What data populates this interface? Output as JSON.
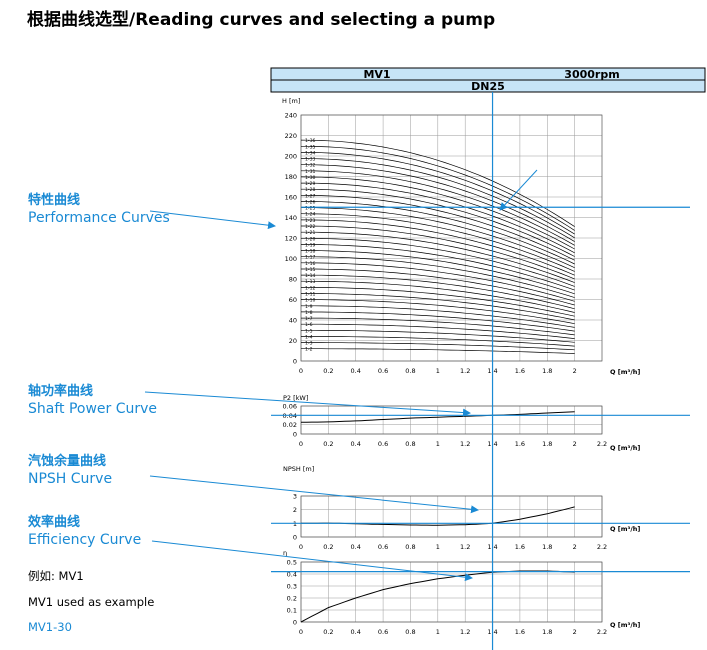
{
  "page": {
    "title": "根据曲线选型/Reading curves and selecting a pump"
  },
  "callouts": [
    {
      "cn": "特性曲线",
      "en": "Performance Curves"
    },
    {
      "cn": "轴功率曲线",
      "en": "Shaft Power Curve"
    },
    {
      "cn": "汽蚀余量曲线",
      "en": "NPSH  Curve"
    },
    {
      "cn": "效率曲线",
      "en": "Efficiency Curve"
    }
  ],
  "example": {
    "line1": "例如:  MV1",
    "line2": "MV1 used as example",
    "line3": "MV1-30"
  },
  "header": {
    "model": "MV1",
    "speed": "3000rpm",
    "size": "DN25"
  },
  "colors": {
    "accent": "#1a8ad4",
    "header_fill": "#c6e4f7",
    "grid": "#9a9a9a",
    "curve": "#000000"
  },
  "chart_data": [
    {
      "type": "line",
      "name": "performance",
      "ylabel": "H [m]",
      "xlabel": "Q [m³/h]",
      "xlim": [
        0,
        2.2
      ],
      "ylim": [
        0,
        240
      ],
      "xticks": [
        "0",
        "0.2",
        "0.4",
        "0.6",
        "0.8",
        "1",
        "1.2",
        "1.4",
        "1.6",
        "1.8",
        "2"
      ],
      "yticks": [
        "0",
        "20",
        "40",
        "60",
        "80",
        "100",
        "120",
        "140",
        "160",
        "180",
        "200",
        "220",
        "240"
      ],
      "grid": true,
      "stage_head_shutoff_m": 7.3,
      "curve_end_q": 2.02,
      "end_ratio": 0.6,
      "stage_labels": [
        "1-2",
        "1-3",
        "1-4",
        "1-5",
        "1-6",
        "1-7",
        "1-8",
        "1-9",
        "1-10",
        "1-11",
        "1-12",
        "1-13",
        "1-14",
        "1-15",
        "1-16",
        "1-17",
        "1-18",
        "1-19",
        "1-20",
        "1-21",
        "1-22",
        "1-23",
        "1-24",
        "1-25",
        "1-26",
        "1-27",
        "1-28",
        "1-29",
        "1-30",
        "1-31",
        "1-32",
        "1-33",
        "1-34",
        "1-35",
        "1-36"
      ],
      "selected": {
        "label": "MV1-30",
        "q": 1.4,
        "h": 150
      }
    },
    {
      "type": "line",
      "name": "shaft_power",
      "ylabel": "P2 [kW]",
      "xlabel": "Q [m³/h]",
      "xlim": [
        0,
        2.2
      ],
      "ylim": [
        0,
        0.06
      ],
      "xticks": [
        "0",
        "0.2",
        "0.4",
        "0.6",
        "0.8",
        "1",
        "1.2",
        "1.4",
        "1.6",
        "1.8",
        "2",
        "2.2"
      ],
      "yticks": [
        "0",
        "0.02",
        "0.04",
        "0.06"
      ],
      "grid": true,
      "x": [
        0,
        0.2,
        0.4,
        0.6,
        0.8,
        1.0,
        1.2,
        1.4,
        1.6,
        1.8,
        2.02
      ],
      "y": [
        0.025,
        0.026,
        0.028,
        0.031,
        0.034,
        0.036,
        0.038,
        0.04,
        0.042,
        0.045,
        0.048
      ],
      "reference": 0.04
    },
    {
      "type": "line",
      "name": "npsh",
      "ylabel": "NPSH [m]",
      "xlabel": "Q [m³/h]",
      "xlim": [
        0,
        2.2
      ],
      "ylim": [
        0,
        3
      ],
      "xticks": [
        "0",
        "0.2",
        "0.4",
        "0.6",
        "0.8",
        "1",
        "1.2",
        "1.4",
        "1.6",
        "1.8",
        "2",
        "2.2"
      ],
      "yticks": [
        "0",
        "1",
        "2",
        "3"
      ],
      "grid": true,
      "x": [
        0,
        0.2,
        0.4,
        0.6,
        0.8,
        1.0,
        1.2,
        1.4,
        1.6,
        1.8,
        2.02
      ],
      "y": [
        1.0,
        1.02,
        0.97,
        0.92,
        0.88,
        0.86,
        0.9,
        1.0,
        1.3,
        1.7,
        2.25
      ],
      "reference": 1.0
    },
    {
      "type": "line",
      "name": "efficiency",
      "ylabel": "η",
      "xlabel": "Q [m³/h]",
      "xlim": [
        0,
        2.2
      ],
      "ylim": [
        0,
        0.5
      ],
      "xticks": [
        "0",
        "0.2",
        "0.4",
        "0.6",
        "0.8",
        "1",
        "1.2",
        "1.4",
        "1.6",
        "1.8",
        "2",
        "2.2"
      ],
      "yticks": [
        "0",
        "0.1",
        "0.2",
        "0.3",
        "0.4",
        "0.5"
      ],
      "grid": true,
      "x": [
        0,
        0.2,
        0.4,
        0.6,
        0.8,
        1.0,
        1.2,
        1.4,
        1.6,
        1.8,
        2.02
      ],
      "y": [
        0,
        0.12,
        0.2,
        0.27,
        0.32,
        0.36,
        0.39,
        0.415,
        0.425,
        0.425,
        0.415
      ],
      "reference": 0.42
    }
  ]
}
